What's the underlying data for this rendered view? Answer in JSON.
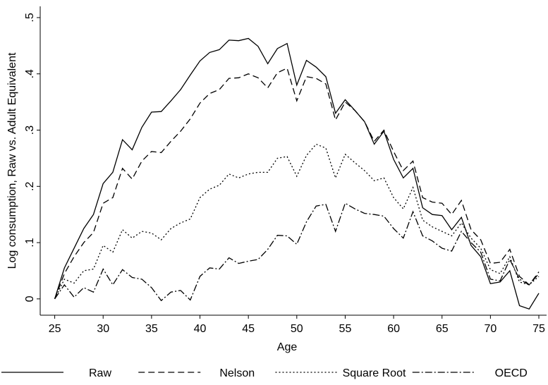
{
  "chart_data": {
    "type": "line",
    "xlabel": "Age",
    "ylabel": "Log consumption, Raw vs. Adult Equivalent",
    "x": [
      25,
      26,
      27,
      28,
      29,
      30,
      31,
      32,
      33,
      34,
      35,
      36,
      37,
      38,
      39,
      40,
      41,
      42,
      43,
      44,
      45,
      46,
      47,
      48,
      49,
      50,
      51,
      52,
      53,
      54,
      55,
      56,
      57,
      58,
      59,
      60,
      61,
      62,
      63,
      64,
      65,
      66,
      67,
      68,
      69,
      70,
      71,
      72,
      73,
      74,
      75
    ],
    "series": [
      {
        "name": "Raw",
        "color": "#000000",
        "dash": "none",
        "values": [
          0,
          0.055,
          0.09,
          0.125,
          0.15,
          0.205,
          0.225,
          0.283,
          0.265,
          0.305,
          0.332,
          0.333,
          0.352,
          0.372,
          0.398,
          0.423,
          0.438,
          0.443,
          0.46,
          0.459,
          0.463,
          0.449,
          0.418,
          0.445,
          0.454,
          0.38,
          0.424,
          0.412,
          0.395,
          0.33,
          0.354,
          0.335,
          0.315,
          0.275,
          0.298,
          0.248,
          0.215,
          0.232,
          0.162,
          0.15,
          0.148,
          0.123,
          0.145,
          0.095,
          0.075,
          0.027,
          0.03,
          0.05,
          -0.012,
          -0.018,
          0.01
        ]
      },
      {
        "name": "Nelson",
        "color": "#000000",
        "dash": "9,5",
        "values": [
          0,
          0.045,
          0.075,
          0.1,
          0.118,
          0.17,
          0.18,
          0.232,
          0.213,
          0.245,
          0.262,
          0.26,
          0.28,
          0.298,
          0.32,
          0.348,
          0.365,
          0.372,
          0.392,
          0.393,
          0.4,
          0.393,
          0.375,
          0.402,
          0.41,
          0.352,
          0.395,
          0.392,
          0.382,
          0.318,
          0.35,
          0.335,
          0.315,
          0.28,
          0.3,
          0.262,
          0.228,
          0.245,
          0.18,
          0.172,
          0.17,
          0.15,
          0.175,
          0.123,
          0.105,
          0.063,
          0.065,
          0.088,
          0.04,
          0.025,
          0.048
        ]
      },
      {
        "name": "Square Root",
        "color": "#000000",
        "dash": "2,3",
        "values": [
          0,
          0.035,
          0.028,
          0.05,
          0.053,
          0.095,
          0.083,
          0.123,
          0.108,
          0.12,
          0.117,
          0.105,
          0.125,
          0.135,
          0.142,
          0.18,
          0.195,
          0.202,
          0.222,
          0.215,
          0.222,
          0.225,
          0.225,
          0.25,
          0.253,
          0.218,
          0.255,
          0.275,
          0.268,
          0.215,
          0.257,
          0.242,
          0.228,
          0.21,
          0.215,
          0.18,
          0.16,
          0.198,
          0.14,
          0.128,
          0.12,
          0.112,
          0.135,
          0.108,
          0.09,
          0.052,
          0.045,
          0.075,
          0.03,
          0.025,
          0.04
        ]
      },
      {
        "name": "OECD",
        "color": "#000000",
        "dash": "10,3,2,3",
        "values": [
          0,
          0.025,
          0.003,
          0.02,
          0.012,
          0.053,
          0.025,
          0.052,
          0.038,
          0.035,
          0.02,
          -0.003,
          0.012,
          0.015,
          -0.002,
          0.04,
          0.055,
          0.053,
          0.073,
          0.063,
          0.067,
          0.07,
          0.088,
          0.113,
          0.112,
          0.097,
          0.137,
          0.165,
          0.168,
          0.12,
          0.17,
          0.16,
          0.152,
          0.15,
          0.147,
          0.125,
          0.108,
          0.155,
          0.112,
          0.103,
          0.09,
          0.085,
          0.12,
          0.1,
          0.083,
          0.035,
          0.032,
          0.07,
          0.035,
          0.025,
          0.045
        ]
      }
    ],
    "xlim": [
      23.5,
      75.8
    ],
    "ylim": [
      -0.029,
      0.52
    ],
    "xticks": [
      25,
      30,
      35,
      40,
      45,
      50,
      55,
      60,
      65,
      70,
      75
    ],
    "yticks": [
      0,
      {
        "value": 0.1,
        "label": ".1"
      },
      {
        "value": 0.2,
        "label": ".2"
      },
      {
        "value": 0.3,
        "label": ".3"
      },
      {
        "value": 0.4,
        "label": ".4"
      },
      {
        "value": 0.5,
        "label": ".5"
      }
    ],
    "grid": false,
    "legend": "bottom"
  }
}
